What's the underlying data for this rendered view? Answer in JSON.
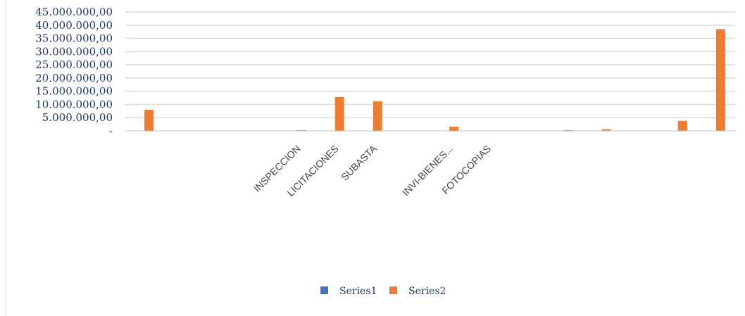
{
  "chart_data": {
    "type": "bar",
    "categories": [
      "",
      "",
      "",
      "",
      "INSPECCION",
      "LICITACIONES",
      "SUBASTA",
      "",
      "INVI-BIENES...",
      "FOTOCOPIAS",
      "",
      "",
      "",
      "",
      "",
      ""
    ],
    "series": [
      {
        "name": "Series1",
        "color": "#4472C4",
        "values": [
          0,
          0,
          0,
          0,
          0,
          0,
          0,
          0,
          0,
          0,
          0,
          0,
          0,
          0,
          0,
          0
        ]
      },
      {
        "name": "Series2",
        "color": "#ED7D31",
        "values": [
          8000000,
          0,
          0,
          0,
          300000,
          12800000,
          11200000,
          0,
          1600000,
          0,
          0,
          300000,
          600000,
          0,
          3800000,
          38500000
        ]
      }
    ],
    "y_ticks": [
      "-",
      "5.000.000,00",
      "10.000.000,00",
      "15.000.000,00",
      "20.000.000,00",
      "25.000.000,00",
      "30.000.000,00",
      "35.000.000,00",
      "40.000.000,00",
      "45.000.000,00"
    ],
    "ylim": [
      0,
      45000000
    ],
    "grid": true,
    "legend": "bottom-center"
  }
}
